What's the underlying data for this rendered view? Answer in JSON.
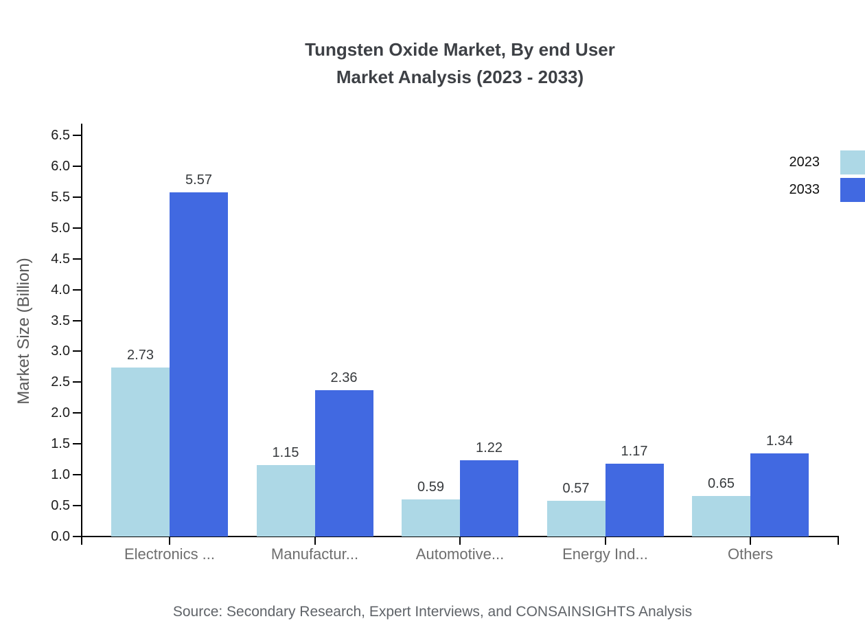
{
  "title": {
    "line1": "Tungsten Oxide Market, By end User",
    "line2": "Market Analysis (2023 - 2033)"
  },
  "source_note": "Source: Secondary Research, Expert Interviews, and CONSAINSIGHTS Analysis",
  "chart_data": {
    "type": "bar",
    "title": "Tungsten Oxide Market, By end User Market Analysis (2023 - 2033)",
    "categories": [
      "Electronics ...",
      "Manufactur...",
      "Automotive...",
      "Energy Ind...",
      "Others"
    ],
    "series": [
      {
        "name": "2023",
        "color": "#ADD8E6",
        "values": [
          2.73,
          1.15,
          0.59,
          0.57,
          0.65
        ]
      },
      {
        "name": "2033",
        "color": "#4169E1",
        "values": [
          5.57,
          2.36,
          1.22,
          1.17,
          1.34
        ]
      }
    ],
    "xlabel": "",
    "ylabel": "Market Size (Billion)",
    "ylim": [
      0,
      6.5
    ],
    "ytick_step": 0.5,
    "grid": false,
    "legend_position": "top-right",
    "value_labels": true,
    "value_label_decimals": 2
  }
}
